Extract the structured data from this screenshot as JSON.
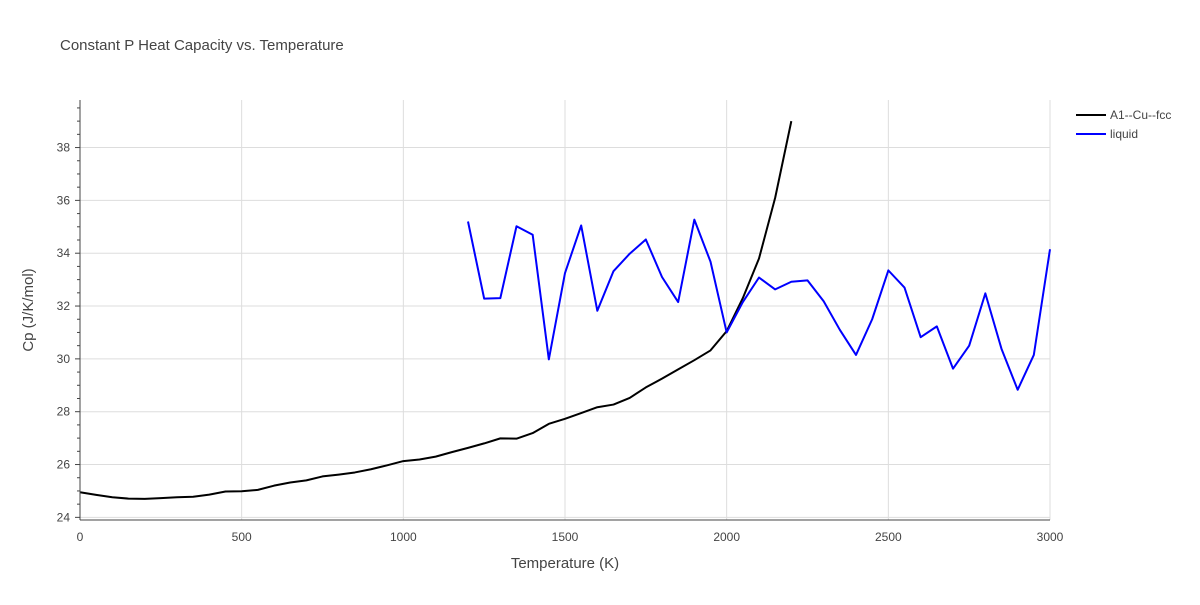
{
  "chart_data": {
    "type": "line",
    "title": "Constant P Heat Capacity vs. Temperature",
    "xlabel": "Temperature (K)",
    "ylabel": "Cp (J/K/mol)",
    "xlim": [
      0,
      3000
    ],
    "ylim": [
      23.9,
      39.8
    ],
    "x_ticks": [
      0,
      500,
      1000,
      1500,
      2000,
      2500,
      3000
    ],
    "x_tick_labels": [
      "0",
      "500",
      "1000",
      "1500",
      "2000",
      "2500",
      "3000"
    ],
    "y_ticks": [
      24,
      26,
      28,
      30,
      32,
      34,
      36,
      38
    ],
    "y_tick_labels": [
      "24",
      "26",
      "28",
      "30",
      "32",
      "34",
      "36",
      "38"
    ],
    "grid": true,
    "legend_position": "top-right",
    "series": [
      {
        "name": "A1--Cu--fcc",
        "color": "#000000",
        "x": [
          0,
          50,
          100,
          150,
          200,
          250,
          300,
          350,
          400,
          450,
          500,
          550,
          600,
          650,
          700,
          750,
          800,
          850,
          900,
          950,
          1000,
          1050,
          1100,
          1150,
          1200,
          1250,
          1300,
          1350,
          1400,
          1450,
          1500,
          1550,
          1600,
          1650,
          1700,
          1750,
          1800,
          1850,
          1900,
          1950,
          2000,
          2050,
          2100,
          2150,
          2200
        ],
        "values": [
          24.95,
          24.85,
          24.76,
          24.71,
          24.7,
          24.73,
          24.76,
          24.78,
          24.86,
          24.98,
          24.99,
          25.04,
          25.2,
          25.32,
          25.4,
          25.55,
          25.62,
          25.7,
          25.82,
          25.97,
          26.13,
          26.19,
          26.3,
          26.47,
          26.63,
          26.8,
          26.99,
          26.98,
          27.19,
          27.54,
          27.73,
          27.95,
          28.17,
          28.27,
          28.52,
          28.92,
          29.25,
          29.6,
          29.95,
          30.32,
          31.05,
          32.3,
          33.8,
          36.1,
          39.0
        ]
      },
      {
        "name": "liquid",
        "color": "#0000ff",
        "x": [
          1200,
          1250,
          1300,
          1350,
          1400,
          1450,
          1500,
          1550,
          1600,
          1650,
          1700,
          1750,
          1800,
          1850,
          1900,
          1950,
          2000,
          2050,
          2100,
          2150,
          2200,
          2250,
          2300,
          2350,
          2400,
          2450,
          2500,
          2550,
          2600,
          2650,
          2700,
          2750,
          2800,
          2850,
          2900,
          2950,
          3000
        ],
        "values": [
          35.2,
          32.28,
          32.3,
          35.02,
          34.7,
          29.98,
          33.25,
          35.05,
          31.82,
          33.32,
          33.98,
          34.52,
          33.1,
          32.15,
          35.27,
          33.68,
          31.0,
          32.15,
          33.08,
          32.63,
          32.92,
          32.97,
          32.18,
          31.1,
          30.15,
          31.5,
          33.35,
          32.7,
          30.82,
          31.23,
          29.63,
          30.5,
          32.48,
          30.38,
          28.83,
          30.15,
          34.15
        ]
      }
    ]
  }
}
